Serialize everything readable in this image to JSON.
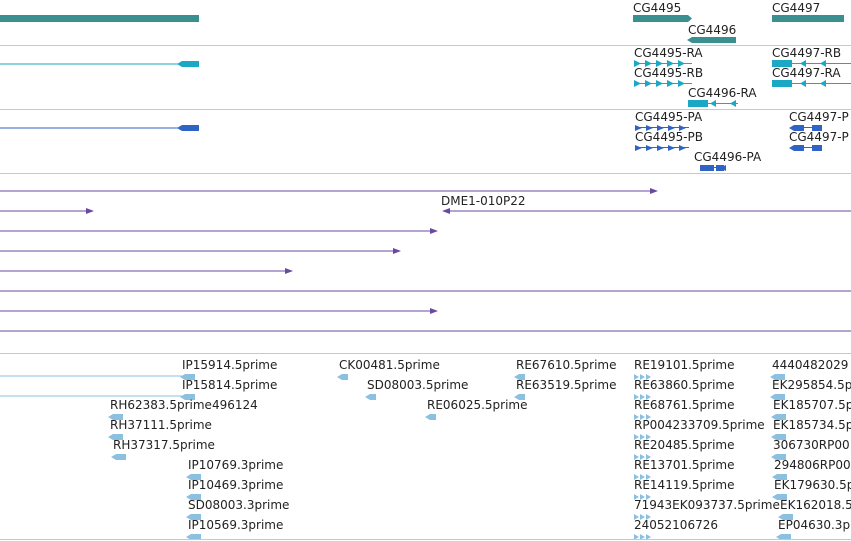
{
  "colors": {
    "gene": "#3a9090",
    "transcript_a": "#1ba8c4",
    "transcript_b": "#2f64c4",
    "est": "#6a4aa0",
    "cdna": "#8cc0e0"
  },
  "gene_track": {
    "labels": [
      "CG4495",
      "CG4496",
      "CG4497"
    ]
  },
  "transcript_track_a": {
    "labels": [
      "CG4495-RA",
      "CG4495-RB",
      "CG4496-RA",
      "CG4497-RB",
      "CG4497-RA"
    ]
  },
  "transcript_track_b": {
    "labels": [
      "CG4495-PA",
      "CG4495-PB",
      "CG4496-PA",
      "CG4497-P",
      "CG4497-P"
    ]
  },
  "est_track": {
    "labels": [
      "DME1-010P22"
    ]
  },
  "cdna_track": {
    "labels": [
      "IP15914.5prime",
      "CK00481.5prime",
      "RE67610.5prime",
      "RE19101.5prime",
      "4440482029",
      "IP15814.5prime",
      "SD08003.5prime",
      "RE63519.5prime",
      "RE63860.5prime",
      "EK295854.5p",
      "RH62383.5prime496124",
      "RE06025.5prime",
      "RE68761.5prime",
      "EK185707.5p",
      "RH37111.5prime",
      "RP004233709.5prime",
      "EK185734.5p",
      "RH37317.5prime",
      "RE20485.5prime",
      "306730RP00",
      "IP10769.3prime",
      "RE13701.5prime",
      "294806RP00",
      "IP10469.3prime",
      "RE14119.5prime",
      "EK179630.5p",
      "SD08003.3prime",
      "71943EK093737.5prime",
      "EK162018.5",
      "IP10569.3prime",
      "24052106726",
      "EP04630.3p"
    ]
  }
}
